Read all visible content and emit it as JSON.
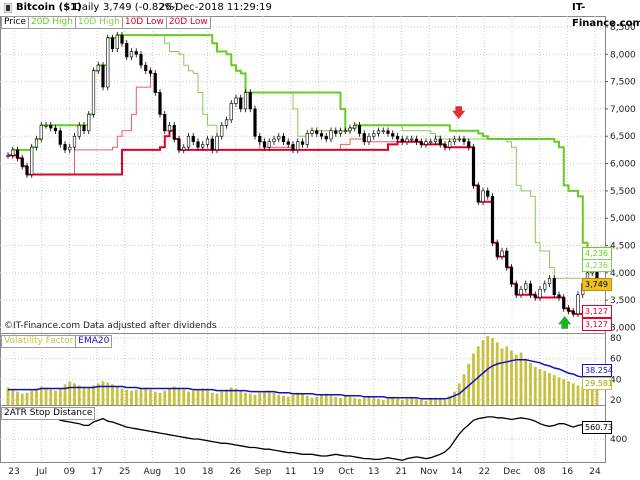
{
  "header": {
    "instrument": "Bitcoin ($1)",
    "period": "Daily",
    "last": "3,749 (-0.82%)",
    "datetime": "26-Dec-2018 11:29:19",
    "brand": "IT-Finance.com"
  },
  "legend_price": [
    "Price",
    "20D High",
    "10D High",
    "10D Low",
    "20D Low"
  ],
  "legend_vol": [
    "Volatility Factor",
    "EMA20"
  ],
  "legend_atr": [
    "2ATR Stop Distance"
  ],
  "watermark": "©IT-Finance.com Data adjusted after dividends",
  "colors": {
    "high20": "#66cc22",
    "high10": "#88cc55",
    "low10": "#f05a6a",
    "low20": "#e0002a",
    "candle": "#000000",
    "volbar": "#c8c040",
    "ema": "#1010c0",
    "atr": "#000000",
    "grid": "#c8c8c8",
    "signal_down": "#e03030",
    "signal_up": "#20b020"
  },
  "chart_data": [
    {
      "type": "candlestick",
      "title": "Bitcoin ($1)",
      "ylim": [
        2900,
        8700
      ],
      "y_ticks": [
        "3,000",
        "3,500",
        "4,000",
        "4,500",
        "5,000",
        "5,500",
        "6,000",
        "6,500",
        "7,000",
        "7,500",
        "8,000",
        "8,500"
      ],
      "x_ticks": [
        "23",
        "Jul",
        "09",
        "17",
        "25",
        "Aug",
        "10",
        "18",
        "26",
        "Sep",
        "11",
        "19",
        "Oct",
        "13",
        "21",
        "Nov",
        "14",
        "22",
        "Dec",
        "08",
        "16",
        "24"
      ],
      "close": [
        6150,
        6250,
        6100,
        5950,
        5800,
        6300,
        6450,
        6700,
        6700,
        6650,
        6600,
        6350,
        6250,
        6300,
        6500,
        6700,
        6600,
        6900,
        7700,
        7800,
        7400,
        8300,
        8100,
        8350,
        8200,
        7950,
        8050,
        8000,
        7800,
        7700,
        7650,
        7300,
        6900,
        6600,
        6700,
        6450,
        6250,
        6300,
        6500,
        6400,
        6300,
        6350,
        6450,
        6250,
        6500,
        6700,
        6800,
        7100,
        7200,
        7000,
        7300,
        7000,
        6500,
        6400,
        6300,
        6400,
        6450,
        6500,
        6400,
        6350,
        6250,
        6400,
        6350,
        6550,
        6600,
        6550,
        6500,
        6450,
        6600,
        6550,
        6600,
        6600,
        6650,
        6700,
        6550,
        6400,
        6500,
        6550,
        6600,
        6600,
        6550,
        6500,
        6450,
        6400,
        6450,
        6450,
        6400,
        6350,
        6400,
        6400,
        6450,
        6350,
        6300,
        6400,
        6450,
        6450,
        6400,
        6300,
        5600,
        5300,
        5500,
        5400,
        4550,
        4300,
        4400,
        4100,
        3800,
        3600,
        3700,
        3800,
        3600,
        3550,
        3700,
        3800,
        3900,
        3600,
        3550,
        3350,
        3300,
        3250,
        3600,
        3800,
        4000,
        4050,
        3750
      ],
      "high20_breaks": [
        6200,
        8450,
        7350,
        6800,
        7350,
        6650,
        6500,
        5600,
        4250
      ],
      "low20_breaks": [
        5800,
        6250,
        6200,
        3550,
        3150
      ],
      "last_values": {
        "high20": "4,236",
        "high10": "4,236",
        "close": "3,749",
        "low10": "3,127",
        "low20": "3,127"
      }
    },
    {
      "type": "bar",
      "series": [
        {
          "name": "Volatility Factor"
        },
        {
          "name": "EMA20"
        }
      ],
      "y_ticks": [
        "20",
        "40",
        "60",
        "80"
      ],
      "ylim": [
        15,
        85
      ],
      "last_values": {
        "ema": "38.254",
        "vol": "29.581"
      },
      "vol": [
        32,
        30,
        28,
        26,
        27,
        29,
        31,
        33,
        32,
        30,
        29,
        31,
        35,
        38,
        36,
        34,
        33,
        32,
        34,
        36,
        38,
        37,
        35,
        33,
        31,
        30,
        29,
        30,
        31,
        32,
        30,
        28,
        27,
        29,
        31,
        33,
        32,
        30,
        28,
        29,
        30,
        31,
        29,
        27,
        26,
        28,
        30,
        32,
        31,
        29,
        27,
        26,
        25,
        27,
        28,
        29,
        27,
        25,
        24,
        23,
        25,
        27,
        26,
        24,
        22,
        23,
        25,
        26,
        24,
        23,
        22,
        24,
        23,
        22,
        21,
        22,
        23,
        22,
        21,
        20,
        22,
        23,
        21,
        20,
        21,
        22,
        21,
        20,
        19,
        21,
        22,
        21,
        20,
        24,
        28,
        36,
        45,
        55,
        65,
        72,
        78,
        82,
        80,
        76,
        70,
        72,
        68,
        64,
        66,
        60,
        56,
        52,
        50,
        48,
        46,
        44,
        42,
        40,
        38,
        36,
        34,
        33,
        32,
        31,
        30
      ],
      "ema": [
        30,
        30,
        30,
        30,
        30,
        30,
        30,
        31,
        31,
        31,
        31,
        31,
        31,
        32,
        32,
        32,
        32,
        32,
        32,
        33,
        33,
        33,
        33,
        33,
        33,
        32,
        32,
        32,
        31,
        31,
        31,
        31,
        31,
        31,
        31,
        31,
        31,
        31,
        31,
        30,
        30,
        30,
        30,
        30,
        29,
        29,
        29,
        29,
        29,
        29,
        29,
        28,
        28,
        28,
        28,
        28,
        28,
        27,
        27,
        27,
        26,
        26,
        26,
        26,
        26,
        25,
        25,
        25,
        25,
        25,
        25,
        24,
        24,
        24,
        24,
        23,
        23,
        23,
        23,
        23,
        22,
        22,
        22,
        22,
        22,
        22,
        22,
        21,
        21,
        21,
        21,
        21,
        21,
        22,
        24,
        26,
        30,
        34,
        38,
        42,
        46,
        50,
        53,
        55,
        56,
        57,
        58,
        59,
        59,
        59,
        58,
        57,
        56,
        54,
        53,
        51,
        50,
        48,
        46,
        45,
        43,
        42,
        41,
        40,
        38
      ]
    },
    {
      "type": "line",
      "series": [
        {
          "name": "2ATR Stop Distance"
        }
      ],
      "y_ticks": [
        "400"
      ],
      "ylim": [
        130,
        800
      ],
      "last_values": {
        "atr": "560.73"
      },
      "values": [
        760,
        740,
        730,
        700,
        690,
        680,
        670,
        660,
        650,
        640,
        650,
        620,
        610,
        600,
        590,
        580,
        560,
        560,
        600,
        620,
        640,
        610,
        600,
        580,
        560,
        540,
        530,
        520,
        510,
        500,
        490,
        480,
        470,
        460,
        450,
        440,
        430,
        420,
        410,
        400,
        400,
        390,
        380,
        370,
        360,
        350,
        350,
        340,
        330,
        320,
        310,
        300,
        300,
        290,
        280,
        280,
        270,
        260,
        250,
        240,
        240,
        230,
        220,
        220,
        220,
        210,
        200,
        200,
        210,
        220,
        210,
        200,
        200,
        190,
        180,
        170,
        170,
        160,
        160,
        170,
        180,
        170,
        160,
        150,
        170,
        180,
        190,
        180,
        170,
        180,
        200,
        220,
        250,
        300,
        380,
        460,
        520,
        570,
        620,
        640,
        650,
        660,
        660,
        650,
        650,
        640,
        630,
        640,
        650,
        640,
        630,
        610,
        580,
        560,
        550,
        560,
        580,
        580,
        560,
        540,
        560,
        570,
        560,
        550,
        560
      ]
    }
  ]
}
